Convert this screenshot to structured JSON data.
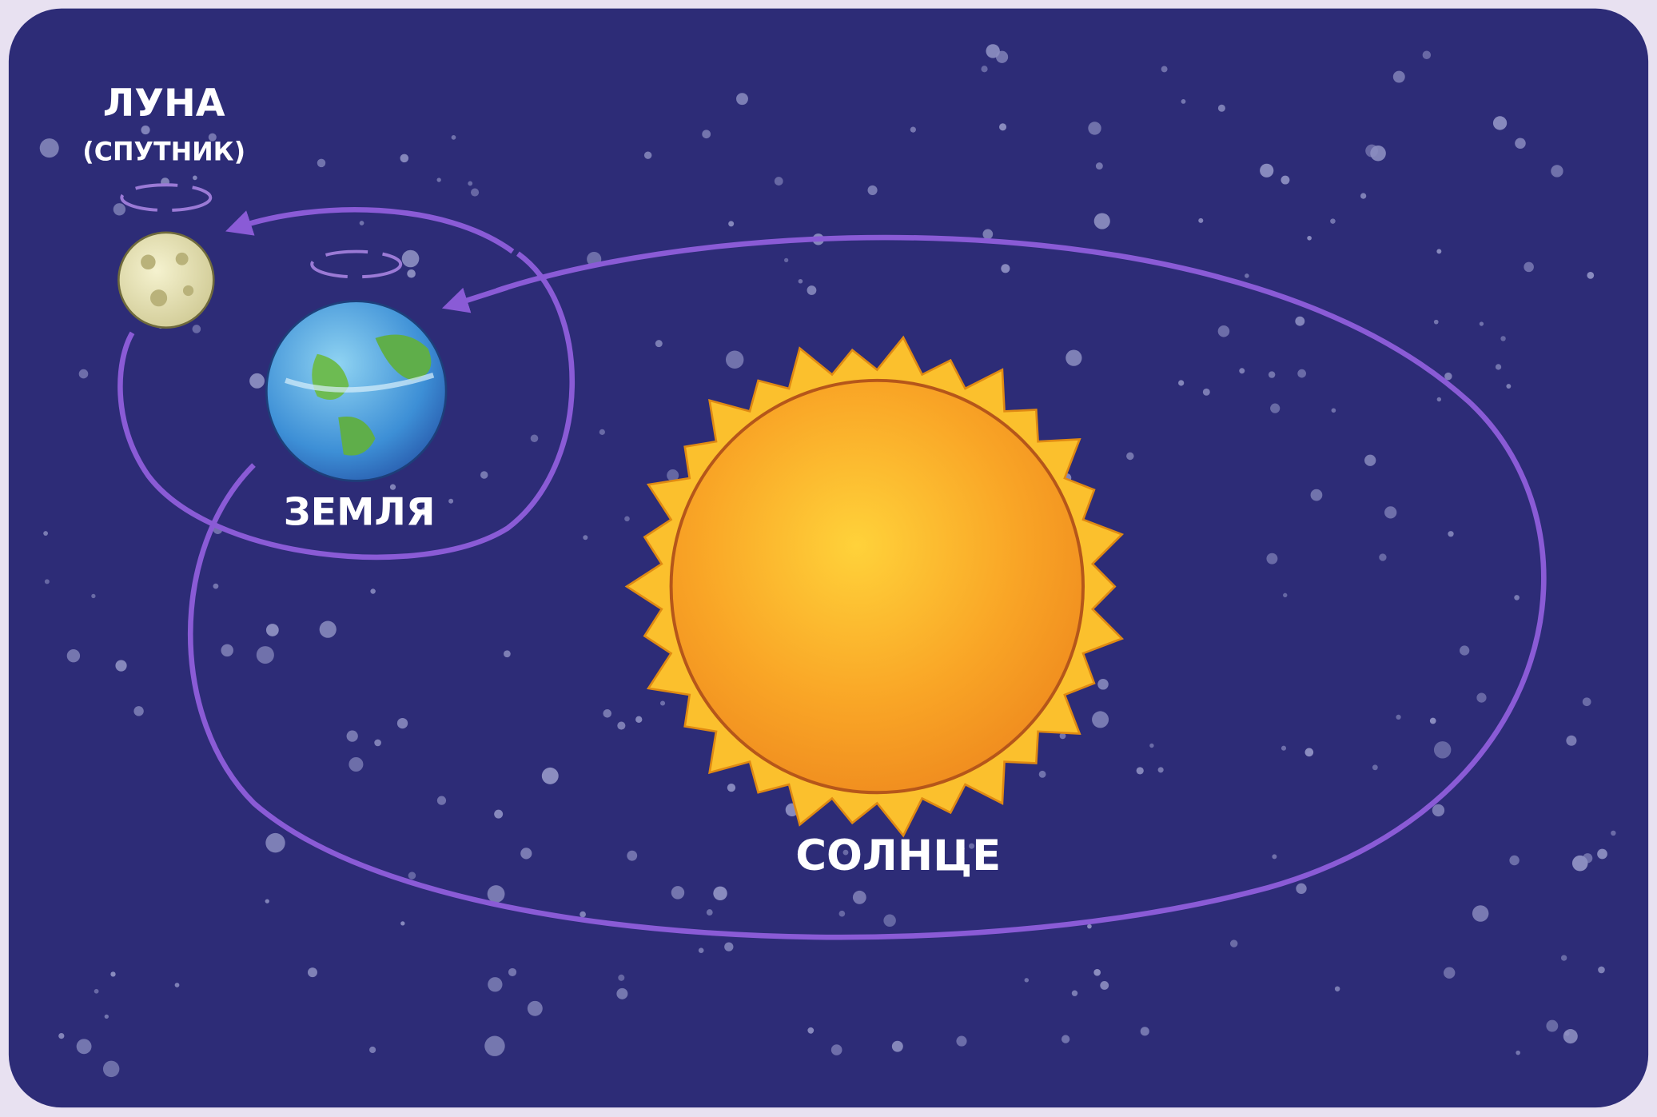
{
  "labels": {
    "moon": {
      "name": "ЛУНА",
      "note": "(СПУТНИК)"
    },
    "earth": {
      "name": "ЗЕМЛЯ"
    },
    "sun": {
      "name": "СОЛНЦЕ"
    }
  }
}
